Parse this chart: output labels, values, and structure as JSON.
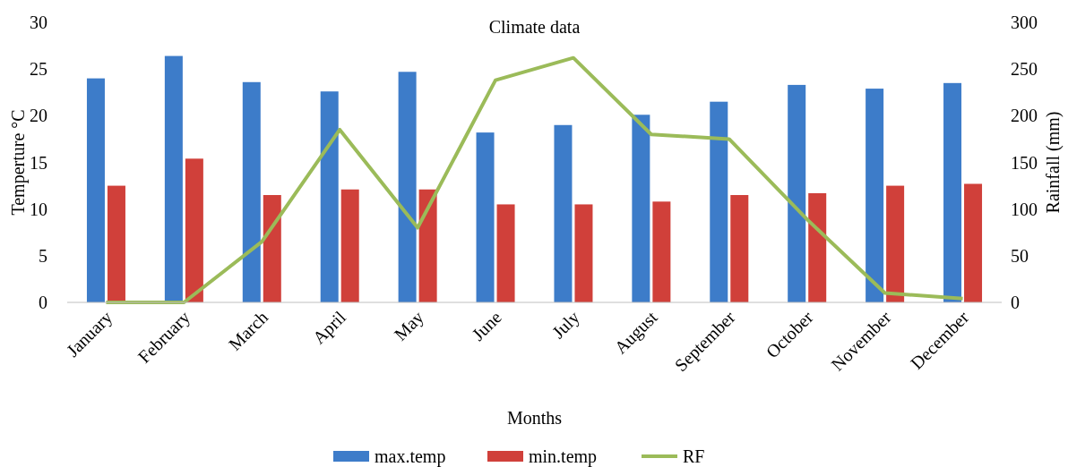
{
  "chart_data": {
    "type": "bar",
    "title": "Climate data",
    "xlabel": "Months",
    "ylabel": "Temperture °C",
    "y2label": "Rainfall (mm)",
    "categories": [
      "January",
      "February",
      "March",
      "April",
      "May",
      "June",
      "July",
      "August",
      "September",
      "October",
      "November",
      "December"
    ],
    "series": [
      {
        "name": "max.temp",
        "color": "#3d7cc9",
        "values": [
          24.0,
          26.4,
          23.6,
          22.6,
          24.7,
          18.2,
          19.0,
          20.1,
          21.5,
          23.3,
          22.9,
          23.5
        ]
      },
      {
        "name": "min.temp",
        "color": "#d0403a",
        "values": [
          12.5,
          15.4,
          11.5,
          12.1,
          12.1,
          10.5,
          10.5,
          10.8,
          11.5,
          11.7,
          12.5,
          12.7
        ]
      },
      {
        "name": "RF",
        "type": "line",
        "axis": "y2",
        "color": "#9bbb59",
        "values": [
          0,
          0,
          65,
          185,
          80,
          238,
          262,
          180,
          175,
          89,
          10,
          4
        ]
      }
    ],
    "ylim": [
      0,
      30
    ],
    "yticks": [
      0,
      5,
      10,
      15,
      20,
      25,
      30
    ],
    "y2lim": [
      0,
      300
    ],
    "y2ticks": [
      0,
      50,
      100,
      150,
      200,
      250,
      300
    ],
    "grid": false,
    "legend": "bottom",
    "marker": "none",
    "line_style": "solid"
  }
}
